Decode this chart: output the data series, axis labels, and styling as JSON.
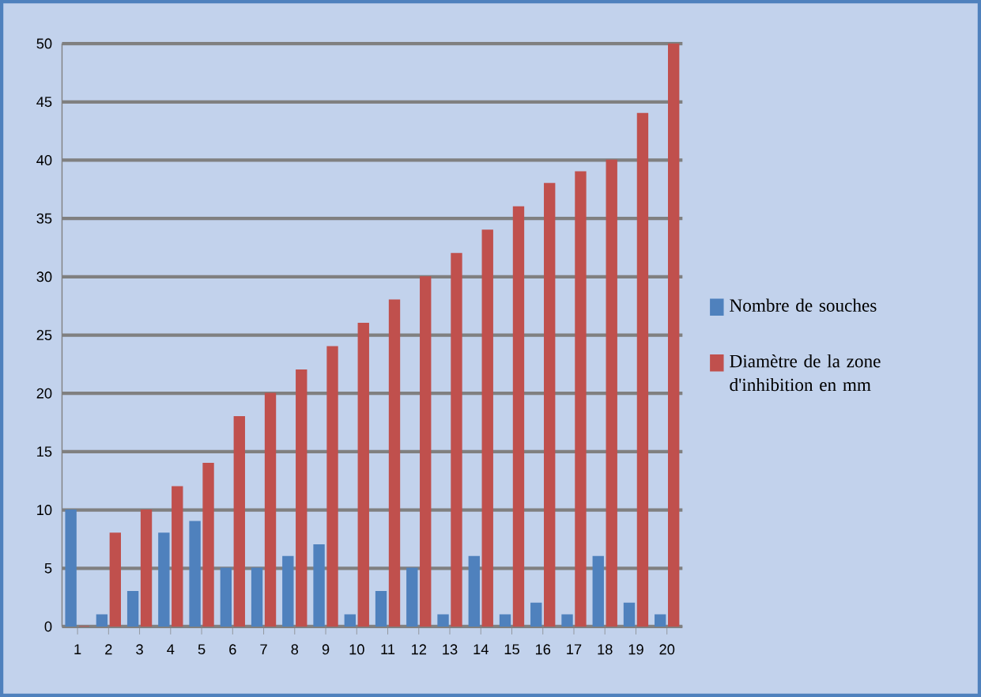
{
  "chart_data": {
    "type": "bar",
    "categories": [
      "1",
      "2",
      "3",
      "4",
      "5",
      "6",
      "7",
      "8",
      "9",
      "10",
      "11",
      "12",
      "13",
      "14",
      "15",
      "16",
      "17",
      "18",
      "19",
      "20"
    ],
    "series": [
      {
        "name": "Nombre de souches",
        "color": "#4f81bd",
        "values": [
          10,
          1,
          3,
          8,
          9,
          5,
          5,
          6,
          7,
          1,
          3,
          5,
          1,
          6,
          1,
          2,
          1,
          6,
          2,
          1
        ]
      },
      {
        "name": "Diamètre de la zone d'inhibition en mm",
        "color": "#c0504d",
        "values": [
          0,
          8,
          10,
          12,
          14,
          18,
          20,
          22,
          24,
          26,
          28,
          30,
          32,
          34,
          36,
          38,
          39,
          40,
          44,
          50
        ]
      }
    ],
    "ylim": [
      0,
      50
    ],
    "yticks": [
      0,
      5,
      10,
      15,
      20,
      25,
      30,
      35,
      40,
      45,
      50
    ],
    "grid": "y",
    "legend": "right"
  }
}
